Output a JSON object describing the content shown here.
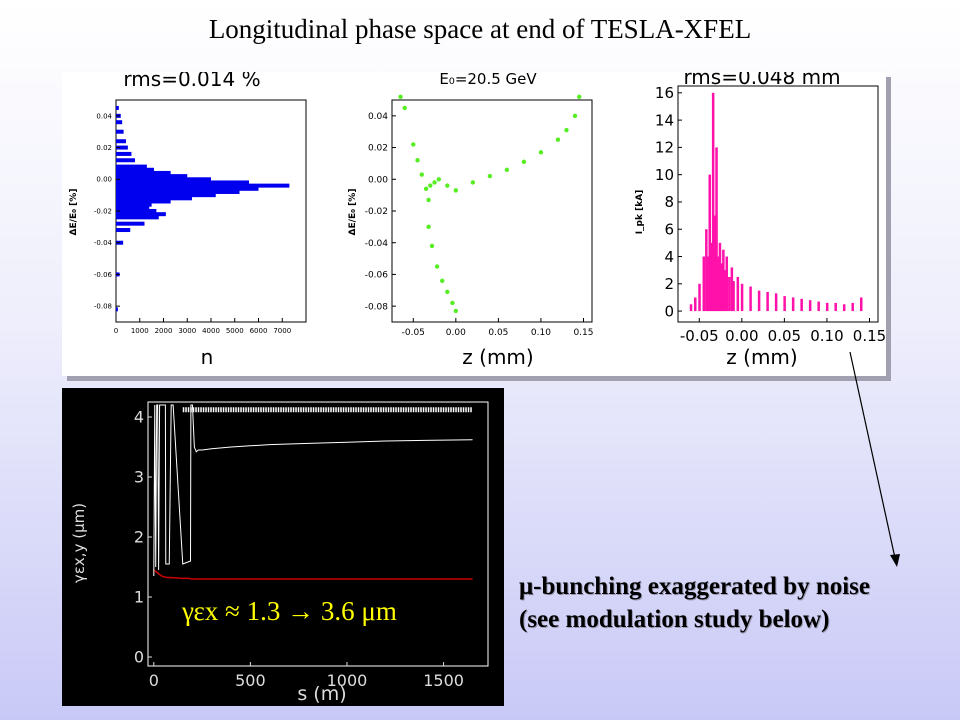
{
  "page": {
    "title": "Longitudinal phase space at end of TESLA-XFEL"
  },
  "annotation": {
    "line1": "μ-bunching exaggerated by noise",
    "line2": "(see modulation study below)"
  },
  "colors": {
    "histogram": "#0000ee",
    "phase_space": "#55ee22",
    "current": "#ff11aa",
    "emittance_final": "#cc0000",
    "emittance_curve": "#ffffff"
  },
  "chart_data": [
    {
      "type": "bar",
      "orientation": "horizontal",
      "title": "rms=0.014 %",
      "xlabel": "n",
      "ylabel": "ΔE/E₀ [%]",
      "xlim": [
        0,
        8000
      ],
      "ylim": [
        -0.09,
        0.05
      ],
      "x_ticks": [
        "0",
        "1000",
        "2000",
        "3000",
        "4000",
        "5000",
        "6000",
        "7000"
      ],
      "y_ticks": [
        "0.04",
        "0.02",
        "0.00",
        "-0.02",
        "-0.04",
        "-0.06",
        "-0.08"
      ],
      "y": [
        -0.082,
        -0.06,
        -0.04,
        -0.032,
        -0.028,
        -0.024,
        -0.022,
        -0.02,
        -0.018,
        -0.016,
        -0.014,
        -0.012,
        -0.01,
        -0.008,
        -0.006,
        -0.004,
        -0.002,
        0.0,
        0.002,
        0.004,
        0.006,
        0.008,
        0.012,
        0.016,
        0.02,
        0.024,
        0.03,
        0.036,
        0.04,
        0.045
      ],
      "values": [
        80,
        150,
        300,
        600,
        1200,
        1800,
        2100,
        1700,
        1400,
        1500,
        2300,
        3200,
        4200,
        5200,
        6000,
        7300,
        5600,
        4000,
        3000,
        2300,
        1600,
        1300,
        800,
        650,
        500,
        420,
        320,
        260,
        200,
        120
      ]
    },
    {
      "type": "scatter",
      "title": "E₀=20.5 GeV",
      "xlabel": "z (mm)",
      "ylabel": "ΔE/E₀ [%]",
      "xlim": [
        -0.075,
        0.16
      ],
      "ylim": [
        -0.09,
        0.05
      ],
      "x_ticks": [
        "-0.05",
        "0.00",
        "0.05",
        "0.10",
        "0.15"
      ],
      "y_ticks": [
        "0.04",
        "0.02",
        "0.00",
        "-0.02",
        "-0.04",
        "-0.06",
        "-0.08"
      ],
      "x": [
        -0.065,
        -0.06,
        -0.05,
        -0.045,
        -0.04,
        -0.035,
        -0.032,
        -0.03,
        -0.025,
        -0.02,
        -0.01,
        0.0,
        0.02,
        0.04,
        0.06,
        0.08,
        0.1,
        0.12,
        0.13,
        0.14,
        0.145,
        -0.032,
        -0.028,
        -0.022,
        -0.016,
        -0.01,
        -0.004,
        0.0
      ],
      "y": [
        0.052,
        0.045,
        0.022,
        0.012,
        0.003,
        -0.006,
        -0.013,
        -0.004,
        -0.002,
        0.0,
        -0.004,
        -0.007,
        -0.002,
        0.002,
        0.006,
        0.011,
        0.017,
        0.025,
        0.031,
        0.04,
        0.052,
        -0.03,
        -0.042,
        -0.055,
        -0.064,
        -0.071,
        -0.078,
        -0.083
      ]
    },
    {
      "type": "bar",
      "title": "rms=0.048 mm",
      "xlabel": "z (mm)",
      "ylabel": "I_pk [kA]",
      "xlim": [
        -0.075,
        0.16
      ],
      "ylim": [
        -0.8,
        16.5
      ],
      "x_ticks": [
        "-0.05",
        "0.00",
        "0.05",
        "0.10",
        "0.15"
      ],
      "y_ticks": [
        "16",
        "14",
        "12",
        "10",
        "8",
        "6",
        "4",
        "2",
        "0"
      ],
      "x": [
        -0.06,
        -0.055,
        -0.05,
        -0.045,
        -0.042,
        -0.04,
        -0.038,
        -0.036,
        -0.034,
        -0.032,
        -0.03,
        -0.028,
        -0.026,
        -0.024,
        -0.022,
        -0.02,
        -0.018,
        -0.015,
        -0.012,
        -0.01,
        -0.005,
        0.0,
        0.01,
        0.02,
        0.03,
        0.04,
        0.05,
        0.06,
        0.07,
        0.08,
        0.09,
        0.1,
        0.11,
        0.12,
        0.13,
        0.14
      ],
      "values": [
        0.5,
        1,
        2,
        4,
        6,
        4,
        10,
        5,
        16,
        7,
        12,
        4,
        5,
        3.5,
        4.5,
        3,
        4,
        2.5,
        3.2,
        2.2,
        2.5,
        2,
        1.8,
        1.5,
        1.4,
        1.3,
        1.1,
        1.0,
        0.9,
        0.8,
        0.7,
        0.6,
        0.6,
        0.5,
        0.6,
        1.0
      ]
    },
    {
      "type": "line",
      "title": "",
      "xlabel": "s (m)",
      "ylabel": "γεx,y (μm)",
      "xlim": [
        -30,
        1730
      ],
      "ylim": [
        -0.15,
        4.25
      ],
      "x_ticks": [
        "0",
        "500",
        "1000",
        "1500"
      ],
      "y_ticks": [
        "4",
        "3",
        "2",
        "1",
        "0"
      ],
      "annotation": "γεx ≈ 1.3 → 3.6 μm",
      "series": [
        {
          "x": [
            0,
            20,
            40,
            60,
            100,
            150,
            180,
            200,
            210,
            240,
            300,
            400,
            500,
            600,
            800,
            1000,
            1200,
            1400,
            1650
          ],
          "values": [
            1.45,
            1.4,
            1.35,
            1.33,
            1.32,
            1.31,
            1.31,
            1.3,
            1.3,
            1.3,
            1.3,
            1.3,
            1.3,
            1.3,
            1.3,
            1.3,
            1.3,
            1.3,
            1.3
          ]
        },
        {
          "x": [
            0,
            5,
            10,
            15,
            20,
            25,
            30,
            40,
            50,
            60,
            62,
            70,
            80,
            90,
            100,
            150,
            190,
            192,
            200,
            210,
            220,
            230,
            250,
            300,
            400,
            500,
            600,
            800,
            1000,
            1200,
            1400,
            1650
          ],
          "values": [
            1.35,
            4.2,
            1.5,
            4.2,
            4.2,
            1.45,
            4.2,
            4.2,
            4.2,
            4.2,
            1.55,
            1.55,
            1.55,
            4.2,
            4.2,
            1.55,
            1.6,
            4.2,
            4.2,
            3.5,
            3.42,
            3.45,
            3.45,
            3.47,
            3.5,
            3.52,
            3.54,
            3.56,
            3.58,
            3.6,
            3.61,
            3.62
          ]
        },
        {
          "x": [
            150,
            300,
            450,
            600,
            750,
            900,
            1050,
            1200,
            1350,
            1500,
            1650
          ],
          "values": [
            4.12,
            4.12,
            4.12,
            4.12,
            4.12,
            4.12,
            4.12,
            4.12,
            4.12,
            4.12,
            4.12
          ]
        }
      ]
    }
  ]
}
